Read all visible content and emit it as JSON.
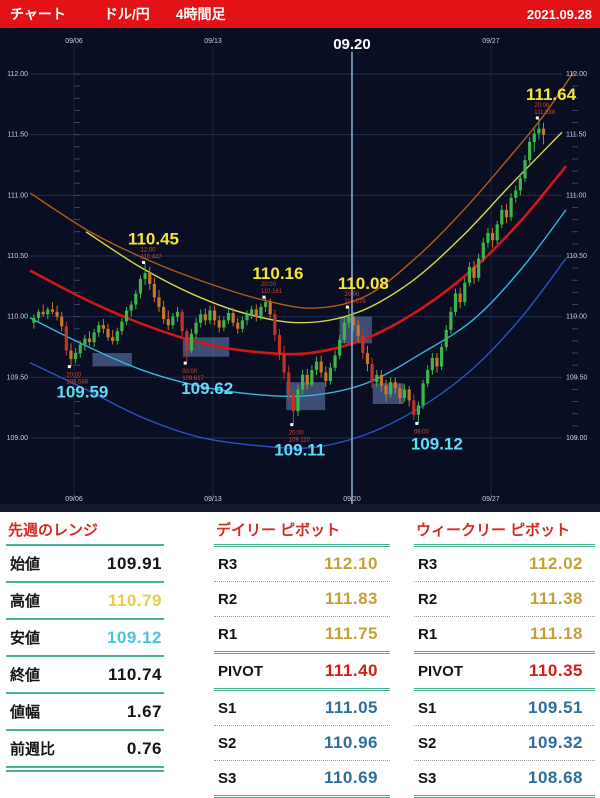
{
  "header": {
    "app_label": "チャート",
    "pair": "ドル/円",
    "timeframe": "4時間足",
    "date": "2021.09.28"
  },
  "chart_data": {
    "type": "candlestick",
    "title": "ドル/円 4時間足",
    "interval": "4h",
    "ohlc_format": [
      "open",
      "high",
      "low",
      "close"
    ],
    "ylim": [
      108.8,
      112.25
    ],
    "y_ticks": [
      "112.00",
      "111.50",
      "111.00",
      "110.50",
      "110.00",
      "109.50",
      "109.00"
    ],
    "y_tick_values": [
      112.0,
      111.5,
      111.0,
      110.5,
      110.0,
      109.5,
      109.0
    ],
    "time_axis": {
      "week_labels": [
        "09/06",
        "09/13",
        "09/20",
        "09/27"
      ],
      "candles_per_week": 30,
      "first_candle": "09/02 12:00",
      "highlight_label": "09.20",
      "highlight_week": 2
    },
    "colors": {
      "background": "#0a0e22",
      "grid": "#222d50",
      "week_grid": "#1b2645",
      "axis_text": "#c9cfdd",
      "bull": "#3db54a",
      "bear": "#c8762a",
      "bear_strong": "#c23428",
      "vline": "#8fb3d4",
      "zone": "#7e9bd8",
      "label_high": "#f4e438",
      "label_low": "#5fdcf8",
      "marker_note": "#d24535",
      "dot": "#ffffff"
    },
    "candles": [
      [
        109.95,
        110.02,
        109.9,
        109.99
      ],
      [
        109.99,
        110.06,
        109.96,
        110.04
      ],
      [
        110.04,
        110.1,
        110.0,
        110.02
      ],
      [
        110.02,
        110.08,
        109.98,
        110.06
      ],
      [
        110.06,
        110.12,
        110.02,
        110.04
      ],
      [
        110.04,
        110.09,
        109.97,
        110.0
      ],
      [
        110.0,
        110.04,
        109.88,
        109.92
      ],
      [
        109.92,
        109.96,
        109.68,
        109.72
      ],
      [
        109.72,
        109.78,
        109.588,
        109.65
      ],
      [
        109.65,
        109.74,
        109.62,
        109.7
      ],
      [
        109.7,
        109.8,
        109.66,
        109.77
      ],
      [
        109.77,
        109.85,
        109.72,
        109.82
      ],
      [
        109.82,
        109.88,
        109.76,
        109.79
      ],
      [
        109.79,
        109.9,
        109.75,
        109.87
      ],
      [
        109.87,
        109.96,
        109.83,
        109.93
      ],
      [
        109.93,
        109.98,
        109.86,
        109.9
      ],
      [
        109.9,
        109.94,
        109.8,
        109.83
      ],
      [
        109.83,
        109.89,
        109.77,
        109.8
      ],
      [
        109.8,
        109.91,
        109.77,
        109.88
      ],
      [
        109.88,
        109.99,
        109.85,
        109.96
      ],
      [
        109.96,
        110.08,
        109.93,
        110.05
      ],
      [
        110.05,
        110.13,
        110.0,
        110.1
      ],
      [
        110.1,
        110.22,
        110.06,
        110.19
      ],
      [
        110.19,
        110.34,
        110.15,
        110.31
      ],
      [
        110.31,
        110.447,
        110.26,
        110.36
      ],
      [
        110.36,
        110.41,
        110.22,
        110.27
      ],
      [
        110.27,
        110.32,
        110.12,
        110.16
      ],
      [
        110.16,
        110.22,
        110.04,
        110.08
      ],
      [
        110.08,
        110.13,
        109.94,
        109.98
      ],
      [
        109.98,
        110.05,
        109.89,
        109.93
      ],
      [
        109.93,
        110.03,
        109.9,
        110.0
      ],
      [
        110.0,
        110.08,
        109.96,
        110.04
      ],
      [
        110.04,
        110.06,
        109.84,
        109.88
      ],
      [
        109.88,
        109.9,
        109.617,
        109.72
      ],
      [
        109.72,
        109.9,
        109.7,
        109.86
      ],
      [
        109.86,
        109.99,
        109.82,
        109.95
      ],
      [
        109.95,
        110.06,
        109.91,
        110.02
      ],
      [
        110.02,
        110.07,
        109.93,
        109.97
      ],
      [
        109.97,
        110.09,
        109.94,
        110.05
      ],
      [
        110.05,
        110.09,
        109.93,
        109.97
      ],
      [
        109.97,
        110.01,
        109.87,
        109.91
      ],
      [
        109.91,
        110.0,
        109.88,
        109.97
      ],
      [
        109.97,
        110.06,
        109.94,
        110.03
      ],
      [
        110.03,
        110.07,
        109.92,
        109.95
      ],
      [
        109.95,
        109.99,
        109.86,
        109.9
      ],
      [
        109.9,
        110.0,
        109.87,
        109.97
      ],
      [
        109.97,
        110.05,
        109.93,
        110.02
      ],
      [
        110.02,
        110.09,
        109.98,
        110.06
      ],
      [
        110.06,
        110.1,
        109.96,
        110.0
      ],
      [
        110.0,
        110.11,
        109.97,
        110.08
      ],
      [
        110.08,
        110.161,
        110.04,
        110.12
      ],
      [
        110.12,
        110.15,
        109.98,
        110.02
      ],
      [
        110.02,
        110.06,
        109.8,
        109.85
      ],
      [
        109.85,
        109.9,
        109.64,
        109.69
      ],
      [
        109.69,
        109.76,
        109.48,
        109.54
      ],
      [
        109.54,
        109.6,
        109.3,
        109.36
      ],
      [
        109.36,
        109.42,
        109.11,
        109.22
      ],
      [
        109.22,
        109.44,
        109.18,
        109.4
      ],
      [
        109.4,
        109.56,
        109.36,
        109.52
      ],
      [
        109.52,
        109.57,
        109.4,
        109.44
      ],
      [
        109.44,
        109.6,
        109.42,
        109.56
      ],
      [
        109.56,
        109.67,
        109.52,
        109.63
      ],
      [
        109.63,
        109.68,
        109.5,
        109.54
      ],
      [
        109.54,
        109.59,
        109.42,
        109.47
      ],
      [
        109.47,
        109.62,
        109.44,
        109.58
      ],
      [
        109.58,
        109.72,
        109.55,
        109.68
      ],
      [
        109.68,
        109.85,
        109.65,
        109.81
      ],
      [
        109.81,
        109.99,
        109.78,
        109.95
      ],
      [
        109.95,
        110.079,
        109.91,
        110.0
      ],
      [
        110.0,
        110.04,
        109.88,
        109.93
      ],
      [
        109.93,
        109.97,
        109.79,
        109.84
      ],
      [
        109.84,
        109.88,
        109.65,
        109.7
      ],
      [
        109.7,
        109.76,
        109.55,
        109.61
      ],
      [
        109.61,
        109.66,
        109.41,
        109.46
      ],
      [
        109.46,
        109.56,
        109.42,
        109.52
      ],
      [
        109.52,
        109.56,
        109.38,
        109.43
      ],
      [
        109.43,
        109.48,
        109.3,
        109.36
      ],
      [
        109.36,
        109.5,
        109.33,
        109.46
      ],
      [
        109.46,
        109.5,
        109.36,
        109.41
      ],
      [
        109.41,
        109.45,
        109.28,
        109.33
      ],
      [
        109.33,
        109.44,
        109.3,
        109.4
      ],
      [
        109.4,
        109.43,
        109.26,
        109.31
      ],
      [
        109.31,
        109.36,
        109.15,
        109.19
      ],
      [
        109.19,
        109.3,
        109.12,
        109.27
      ],
      [
        109.27,
        109.48,
        109.24,
        109.45
      ],
      [
        109.45,
        109.6,
        109.42,
        109.56
      ],
      [
        109.56,
        109.7,
        109.52,
        109.66
      ],
      [
        109.66,
        109.7,
        109.54,
        109.59
      ],
      [
        109.59,
        109.78,
        109.56,
        109.75
      ],
      [
        109.75,
        109.93,
        109.72,
        109.89
      ],
      [
        109.89,
        110.08,
        109.86,
        110.04
      ],
      [
        110.04,
        110.23,
        110.01,
        110.19
      ],
      [
        110.19,
        110.24,
        110.07,
        110.12
      ],
      [
        110.12,
        110.32,
        110.09,
        110.28
      ],
      [
        110.28,
        110.45,
        110.25,
        110.41
      ],
      [
        110.41,
        110.46,
        110.27,
        110.32
      ],
      [
        110.32,
        110.52,
        110.29,
        110.48
      ],
      [
        110.48,
        110.65,
        110.45,
        110.61
      ],
      [
        110.61,
        110.73,
        110.57,
        110.69
      ],
      [
        110.69,
        110.73,
        110.57,
        110.63
      ],
      [
        110.63,
        110.79,
        110.6,
        110.76
      ],
      [
        110.76,
        110.92,
        110.73,
        110.88
      ],
      [
        110.88,
        110.93,
        110.77,
        110.82
      ],
      [
        110.82,
        111.02,
        110.79,
        110.98
      ],
      [
        110.98,
        111.08,
        110.94,
        111.04
      ],
      [
        111.04,
        111.18,
        111.0,
        111.14
      ],
      [
        111.14,
        111.33,
        111.11,
        111.29
      ],
      [
        111.29,
        111.48,
        111.26,
        111.44
      ],
      [
        111.44,
        111.55,
        111.36,
        111.51
      ],
      [
        111.51,
        111.638,
        111.46,
        111.55
      ],
      [
        111.55,
        111.6,
        111.42,
        111.5
      ]
    ],
    "curves": [
      {
        "name": "band-slowest",
        "color": "#b05a1a",
        "width": 1.4,
        "points": [
          [
            30,
            111.02
          ],
          [
            90,
            110.7
          ],
          [
            150,
            110.46
          ],
          [
            210,
            110.27
          ],
          [
            262,
            110.14
          ],
          [
            314,
            110.07
          ],
          [
            366,
            110.17
          ],
          [
            418,
            110.5
          ],
          [
            466,
            110.9
          ],
          [
            508,
            111.3
          ],
          [
            542,
            111.64
          ],
          [
            574,
            112.02
          ]
        ]
      },
      {
        "name": "band-slow",
        "color": "#d8d84a",
        "width": 1.4,
        "points": [
          [
            86,
            110.7
          ],
          [
            140,
            110.41
          ],
          [
            194,
            110.18
          ],
          [
            248,
            110.02
          ],
          [
            302,
            109.95
          ],
          [
            356,
            110.03
          ],
          [
            410,
            110.28
          ],
          [
            462,
            110.66
          ],
          [
            510,
            111.08
          ],
          [
            562,
            111.52
          ]
        ]
      },
      {
        "name": "band-mid",
        "color": "#d01818",
        "width": 2.6,
        "points": [
          [
            30,
            110.38
          ],
          [
            86,
            110.14
          ],
          [
            142,
            109.94
          ],
          [
            198,
            109.79
          ],
          [
            254,
            109.71
          ],
          [
            310,
            109.7
          ],
          [
            366,
            109.82
          ],
          [
            422,
            110.07
          ],
          [
            474,
            110.4
          ],
          [
            522,
            110.8
          ],
          [
            566,
            111.24
          ]
        ]
      },
      {
        "name": "band-fast",
        "color": "#35b6d9",
        "width": 1.4,
        "points": [
          [
            30,
            109.99
          ],
          [
            86,
            109.76
          ],
          [
            142,
            109.56
          ],
          [
            198,
            109.43
          ],
          [
            254,
            109.36
          ],
          [
            310,
            109.35
          ],
          [
            366,
            109.45
          ],
          [
            422,
            109.7
          ],
          [
            474,
            109.98
          ],
          [
            522,
            110.4
          ],
          [
            566,
            110.88
          ]
        ]
      },
      {
        "name": "band-fastest",
        "color": "#2b53c8",
        "width": 1.4,
        "points": [
          [
            30,
            109.62
          ],
          [
            86,
            109.4
          ],
          [
            142,
            109.17
          ],
          [
            198,
            109.01
          ],
          [
            254,
            108.94
          ],
          [
            310,
            108.92
          ],
          [
            366,
            109.03
          ],
          [
            422,
            109.26
          ],
          [
            474,
            109.58
          ],
          [
            522,
            110.0
          ],
          [
            566,
            110.48
          ]
        ]
      }
    ],
    "zones": [
      {
        "i0": 13,
        "i1": 21.5,
        "pLo": 109.59,
        "pHi": 109.7
      },
      {
        "i0": 32.5,
        "i1": 42.5,
        "pLo": 109.67,
        "pHi": 109.83
      },
      {
        "i0": 54.8,
        "i1": 63.2,
        "pLo": 109.23,
        "pHi": 109.46
      },
      {
        "i0": 66.3,
        "i1": 73.3,
        "pLo": 109.78,
        "pHi": 110.0
      },
      {
        "i0": 73.5,
        "i1": 80.2,
        "pLo": 109.28,
        "pHi": 109.45
      }
    ],
    "annotations": [
      {
        "label": "110.45",
        "time": "12:00",
        "price": "110.447",
        "tone": "high",
        "idx": 24,
        "at": 110.447,
        "side": "above",
        "dx": 10
      },
      {
        "label": "110.16",
        "time": "20:00",
        "price": "110.161",
        "tone": "high",
        "idx": 50,
        "at": 110.161,
        "side": "above",
        "dx": 14
      },
      {
        "label": "110.08",
        "time": "20:00",
        "price": "110.079",
        "tone": "high",
        "idx": 68,
        "at": 110.079,
        "side": "above",
        "dx": 16
      },
      {
        "label": "111.64",
        "time": "20:00",
        "price": "111.638",
        "tone": "high",
        "idx": 109,
        "at": 111.638,
        "side": "above",
        "dx": 18
      },
      {
        "label": "109.59",
        "time": "20:00",
        "price": "109.588",
        "tone": "low",
        "idx": 8,
        "at": 109.588,
        "side": "below",
        "dx": 13
      },
      {
        "label": "109.62",
        "time": "00:00",
        "price": "109.617",
        "tone": "low",
        "idx": 33,
        "at": 109.617,
        "side": "below",
        "dx": 22
      },
      {
        "label": "109.11",
        "time": "20:00",
        "price": "109.110",
        "tone": "low",
        "idx": 56,
        "at": 109.11,
        "side": "below",
        "dx": 8
      },
      {
        "label": "109.12",
        "time": "08:00",
        "price": "",
        "tone": "low",
        "idx": 83,
        "at": 109.12,
        "side": "below",
        "dx": 20
      }
    ]
  },
  "tables": {
    "range_table": {
      "title": "先週のレンジ",
      "rows": [
        {
          "label": "始値",
          "value": "109.91",
          "color": "black"
        },
        {
          "label": "高値",
          "value": "110.79",
          "color": "yellow"
        },
        {
          "label": "安値",
          "value": "109.12",
          "color": "cyan"
        },
        {
          "label": "終値",
          "value": "110.74",
          "color": "black"
        },
        {
          "label": "値幅",
          "value": "1.67",
          "color": "black"
        },
        {
          "label": "前週比",
          "value": "0.76",
          "color": "black"
        }
      ]
    },
    "daily_pivot": {
      "title": "デイリー ピボット",
      "rows": [
        {
          "label": "R3",
          "value": "112.10",
          "color": "gold"
        },
        {
          "label": "R2",
          "value": "111.83",
          "color": "gold"
        },
        {
          "label": "R1",
          "value": "111.75",
          "color": "gold"
        },
        {
          "label": "PIVOT",
          "value": "111.40",
          "color": "red"
        },
        {
          "label": "S1",
          "value": "111.05",
          "color": "blue"
        },
        {
          "label": "S2",
          "value": "110.96",
          "color": "blue"
        },
        {
          "label": "S3",
          "value": "110.69",
          "color": "blue"
        }
      ]
    },
    "weekly_pivot": {
      "title": "ウィークリー ピボット",
      "rows": [
        {
          "label": "R3",
          "value": "112.02",
          "color": "gold"
        },
        {
          "label": "R2",
          "value": "111.38",
          "color": "gold"
        },
        {
          "label": "R1",
          "value": "111.18",
          "color": "gold"
        },
        {
          "label": "PIVOT",
          "value": "110.35",
          "color": "red"
        },
        {
          "label": "S1",
          "value": "109.51",
          "color": "blue"
        },
        {
          "label": "S2",
          "value": "109.32",
          "color": "blue"
        },
        {
          "label": "S3",
          "value": "108.68",
          "color": "blue"
        }
      ]
    }
  }
}
